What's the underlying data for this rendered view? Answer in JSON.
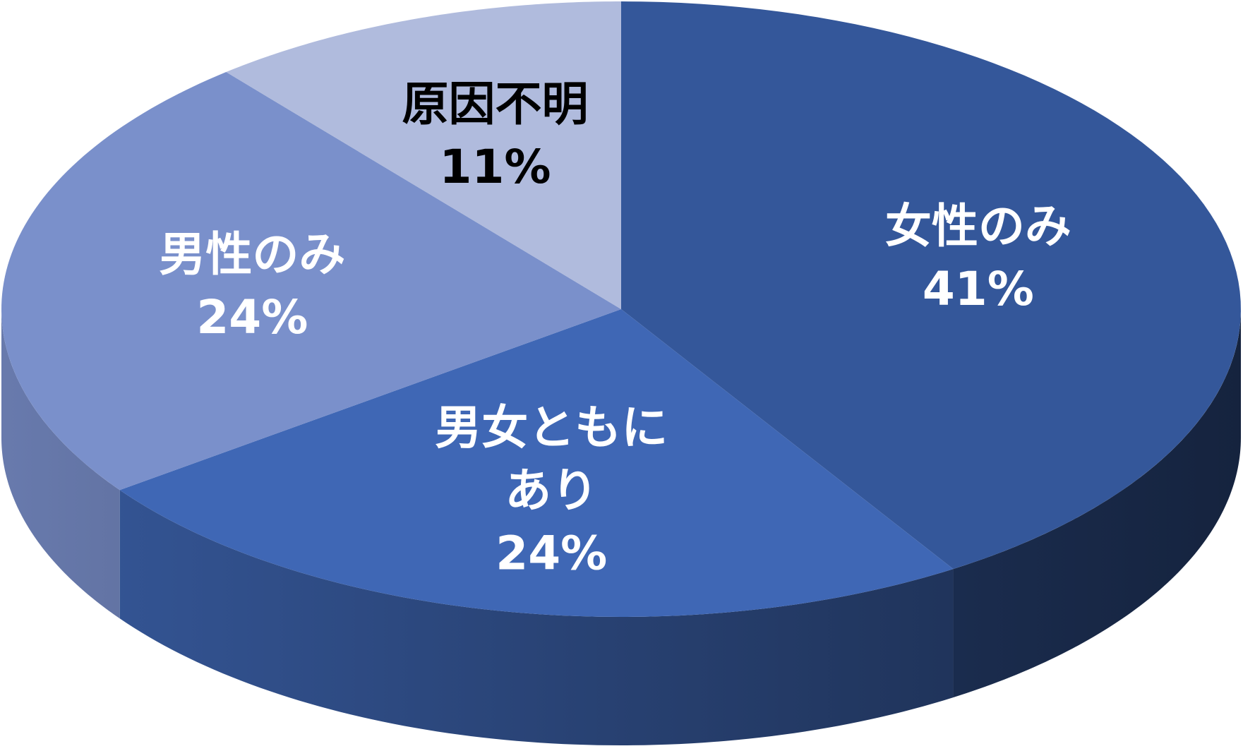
{
  "chart_data": {
    "type": "pie3d",
    "categories": [
      "女性のみ",
      "男女ともに\nあり",
      "男性のみ",
      "原因不明"
    ],
    "values": [
      41,
      24,
      24,
      11
    ],
    "value_labels": [
      "41%",
      "24%",
      "24%",
      "11%"
    ],
    "colors": [
      "#34579a",
      "#3f67b5",
      "#7a90cb",
      "#b0bbdd"
    ]
  }
}
